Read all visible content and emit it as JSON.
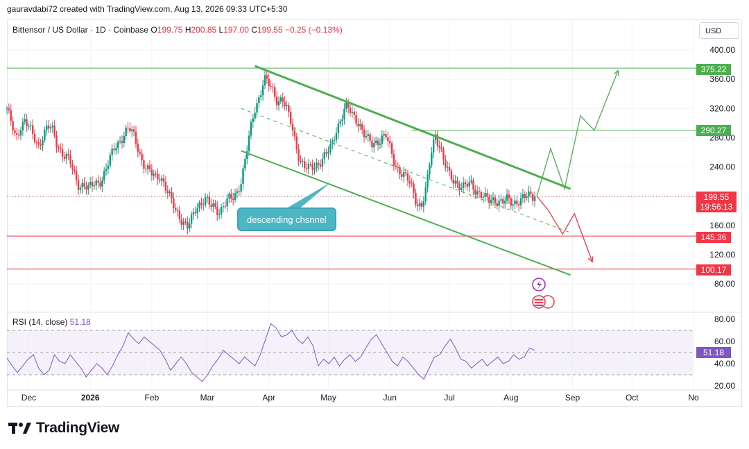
{
  "header": {
    "credit": "gauravdabi72 created with TradingView.com, Aug 13, 2026 09:33 UTC+5:30"
  },
  "legend": {
    "symbol": "Bittensor / US Dollar · 1D · Coinbase",
    "open_label": "O",
    "open": "199.75",
    "high_label": "H",
    "high": "200.85",
    "low_label": "L",
    "low": "197.00",
    "close_label": "C",
    "close": "199.55",
    "change": "−0.25 (−0.13%)"
  },
  "currency_button": "USD",
  "price_axis": {
    "ticks": [
      "400.00",
      "360.00",
      "320.00",
      "280.00",
      "240.00",
      "200.00",
      "160.00",
      "120.00",
      "80.00"
    ]
  },
  "time_axis": {
    "ticks": [
      "Dec",
      "2026",
      "Feb",
      "Mar",
      "Apr",
      "May",
      "Jun",
      "Jul",
      "Aug",
      "Sep",
      "Oct",
      "No"
    ]
  },
  "levels": {
    "resistance_top": "375.22",
    "resistance_mid": "290.27",
    "support_1": "145.36",
    "support_2": "100.17"
  },
  "last_price": {
    "price": "199.55",
    "countdown": "19:56:13"
  },
  "annotation": "descending chsnnel",
  "rsi": {
    "legend_name": "RSI (14, close)",
    "value": "51.18",
    "ticks": [
      "80.00",
      "60.00",
      "40.00",
      "20.00"
    ],
    "values": [
      45,
      38,
      32,
      38,
      44,
      48,
      36,
      30,
      34,
      48,
      42,
      40,
      48,
      42,
      36,
      28,
      34,
      40,
      36,
      30,
      38,
      48,
      56,
      68,
      62,
      58,
      64,
      60,
      56,
      52,
      44,
      34,
      40,
      46,
      40,
      32,
      28,
      24,
      30,
      38,
      44,
      52,
      48,
      44,
      40,
      46,
      42,
      38,
      48,
      62,
      76,
      72,
      64,
      66,
      70,
      62,
      58,
      64,
      56,
      38,
      44,
      40,
      46,
      38,
      44,
      48,
      42,
      46,
      54,
      62,
      66,
      58,
      50,
      42,
      38,
      46,
      42,
      36,
      30,
      26,
      36,
      46,
      48,
      56,
      62,
      54,
      44,
      42,
      36,
      40,
      44,
      38,
      42,
      46,
      40,
      42,
      48,
      44,
      46,
      54,
      52
    ],
    "colors": {
      "line": "#7e57c2",
      "band": "#ede7f6"
    }
  },
  "chart_data": {
    "type": "candlestick",
    "symbol": "Bittensor / US Dollar",
    "interval": "1D",
    "exchange": "Coinbase",
    "x_range": [
      "2025-11-20",
      "2026-11-01"
    ],
    "y_range": [
      60,
      410
    ],
    "closes": [
      320,
      298,
      276,
      296,
      306,
      292,
      278,
      268,
      285,
      296,
      290,
      272,
      262,
      256,
      246,
      226,
      214,
      218,
      210,
      214,
      218,
      224,
      238,
      252,
      268,
      276,
      286,
      292,
      284,
      268,
      248,
      236,
      230,
      226,
      230,
      214,
      198,
      186,
      176,
      166,
      156,
      168,
      186,
      192,
      196,
      186,
      184,
      180,
      188,
      194,
      196,
      206,
      224,
      256,
      290,
      320,
      338,
      362,
      352,
      342,
      330,
      336,
      318,
      298,
      272,
      250,
      240,
      236,
      240,
      246,
      252,
      258,
      268,
      292,
      306,
      322,
      316,
      308,
      302,
      286,
      276,
      270,
      276,
      280,
      282,
      262,
      244,
      236,
      228,
      220,
      208,
      190,
      188,
      210,
      258,
      286,
      268,
      244,
      228,
      222,
      218,
      212,
      214,
      216,
      208,
      204,
      196,
      192,
      196,
      194,
      192,
      194,
      190,
      194,
      196,
      198,
      200,
      199.55
    ],
    "colors": {
      "up": "#089981",
      "down": "#f23645",
      "channel": "#4caf50",
      "support": "#f23645",
      "projection_up": "#4caf50",
      "projection_down": "#f23645"
    },
    "channel": {
      "upper": [
        [
          "2026-03-25",
          378
        ],
        [
          "2026-08-31",
          210
        ]
      ],
      "lower": [
        [
          "2026-03-18",
          262
        ],
        [
          "2026-08-31",
          92
        ]
      ],
      "middle_dashed": [
        [
          "2026-03-18",
          320
        ],
        [
          "2026-08-31",
          150
        ]
      ]
    },
    "horizontal_levels": [
      375.22,
      290.27,
      145.36,
      100.17
    ],
    "projection_bull": [
      [
        "2026-08-14",
        200
      ],
      [
        "2026-08-21",
        265
      ],
      [
        "2026-08-28",
        210
      ],
      [
        "2026-09-05",
        310
      ],
      [
        "2026-09-12",
        290
      ],
      [
        "2026-09-24",
        372
      ]
    ],
    "projection_bear": [
      [
        "2026-08-14",
        200
      ],
      [
        "2026-08-20",
        180
      ],
      [
        "2026-08-27",
        148
      ],
      [
        "2026-09-02",
        176
      ],
      [
        "2026-09-11",
        110
      ]
    ],
    "grid": "on",
    "legend_position": "top-left"
  }
}
